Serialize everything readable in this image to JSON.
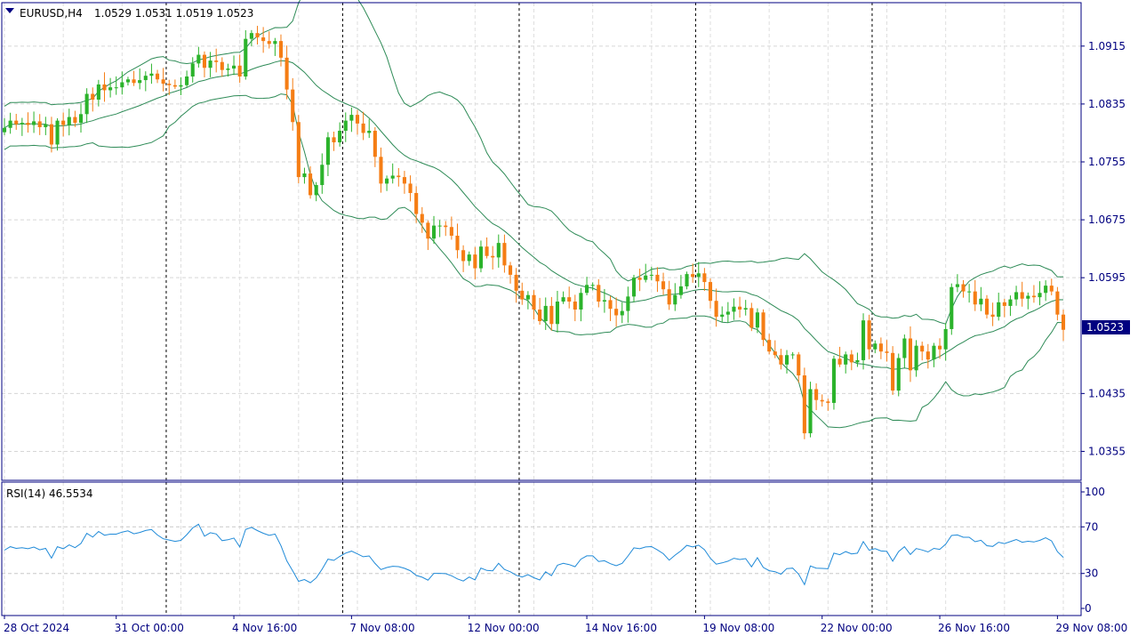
{
  "header": {
    "symbol_label": "EURUSD,H4",
    "ohlc_label": "1.0529 1.0531 1.0519 1.0523"
  },
  "rsi_panel": {
    "label": "RSI(14) 46.5534"
  },
  "current_price_label": "1.0523",
  "colors": {
    "bull": "#2bb32b",
    "bear": "#f57d14",
    "band": "#2e8b57",
    "rsi": "#1f8ad8",
    "frame": "#000080",
    "price_tag": "#000080"
  },
  "chart_data": [
    {
      "type": "candlestick",
      "title": "EURUSD,H4",
      "ylim": [
        1.0315,
        1.0975
      ],
      "y_ticks": [
        "1.0915",
        "1.0835",
        "1.0755",
        "1.0675",
        "1.0595",
        "1.0435",
        "1.0355"
      ],
      "x_tick_labels": [
        "28 Oct 2024",
        "31 Oct 00:00",
        "4 Nov 16:00",
        "7 Nov 08:00",
        "12 Nov 00:00",
        "14 Nov 16:00",
        "19 Nov 08:00",
        "22 Nov 00:00",
        "26 Nov 16:00",
        "29 Nov 08:00"
      ],
      "x_tick_bars": [
        0,
        19,
        39,
        59,
        79,
        99,
        119,
        139,
        159,
        179
      ],
      "period_separator_bars": [
        28,
        58,
        88,
        118,
        148
      ],
      "last_price": 1.0523,
      "bollinger_bands": {
        "period": 20,
        "deviation": 2
      },
      "series": [
        {
          "name": "EURUSD",
          "close": [
            1.0802,
            1.0812,
            1.0807,
            1.0809,
            1.0806,
            1.0811,
            1.0803,
            1.0807,
            1.0779,
            1.0812,
            1.0806,
            1.0817,
            1.0809,
            1.0821,
            1.0849,
            1.0841,
            1.0862,
            1.0854,
            1.0858,
            1.0858,
            1.0865,
            1.0869,
            1.0864,
            1.0868,
            1.0874,
            1.0877,
            1.0869,
            1.0863,
            1.0861,
            1.0859,
            1.0861,
            1.0873,
            1.0891,
            1.0903,
            1.0885,
            1.0895,
            1.0893,
            1.0882,
            1.0884,
            1.0888,
            1.0873,
            1.0925,
            1.0933,
            1.0927,
            1.0922,
            1.0918,
            1.0922,
            1.0899,
            1.0855,
            1.081,
            1.0734,
            1.0739,
            1.0709,
            1.0723,
            1.0751,
            1.0789,
            1.0782,
            1.0798,
            1.0812,
            1.082,
            1.0808,
            1.0795,
            1.0798,
            1.0762,
            1.0725,
            1.0732,
            1.0736,
            1.0734,
            1.0725,
            1.0712,
            1.0683,
            1.0671,
            1.0649,
            1.0667,
            1.0667,
            1.0665,
            1.0653,
            1.0633,
            1.0618,
            1.0627,
            1.0608,
            1.0638,
            1.0625,
            1.0623,
            1.0643,
            1.0612,
            1.0599,
            1.0577,
            1.0565,
            1.0571,
            1.0551,
            1.0535,
            1.0556,
            1.0531,
            1.0562,
            1.0568,
            1.0562,
            1.0551,
            1.0574,
            1.0585,
            1.0585,
            1.0562,
            1.0564,
            1.0552,
            1.0543,
            1.0549,
            1.0569,
            1.0595,
            1.0592,
            1.0598,
            1.0599,
            1.059,
            1.0579,
            1.0558,
            1.0571,
            1.0583,
            1.06,
            1.0596,
            1.0601,
            1.0589,
            1.0563,
            1.0541,
            1.0544,
            1.0548,
            1.0555,
            1.0551,
            1.0553,
            1.0526,
            1.0547,
            1.0509,
            1.0493,
            1.0488,
            1.0475,
            1.0488,
            1.0489,
            1.046,
            1.038,
            1.0441,
            1.0426,
            1.0424,
            1.0422,
            1.0483,
            1.0475,
            1.0489,
            1.0478,
            1.0481,
            1.0536,
            1.0496,
            1.0504,
            1.0493,
            1.0491,
            1.0439,
            1.0484,
            1.0511,
            1.0467,
            1.0501,
            1.0493,
            1.0482,
            1.0501,
            1.0496,
            1.0524,
            1.0582,
            1.0586,
            1.0576,
            1.0576,
            1.0558,
            1.0566,
            1.0544,
            1.0541,
            1.0561,
            1.0556,
            1.0565,
            1.0575,
            1.0566,
            1.057,
            1.0568,
            1.0574,
            1.0584,
            1.0576,
            1.0544,
            1.0523
          ]
        },
        {
          "name": "RSI(14)",
          "ylim": [
            0,
            100
          ],
          "y_ticks": [
            "100",
            "70",
            "30",
            "0"
          ]
        }
      ]
    }
  ]
}
